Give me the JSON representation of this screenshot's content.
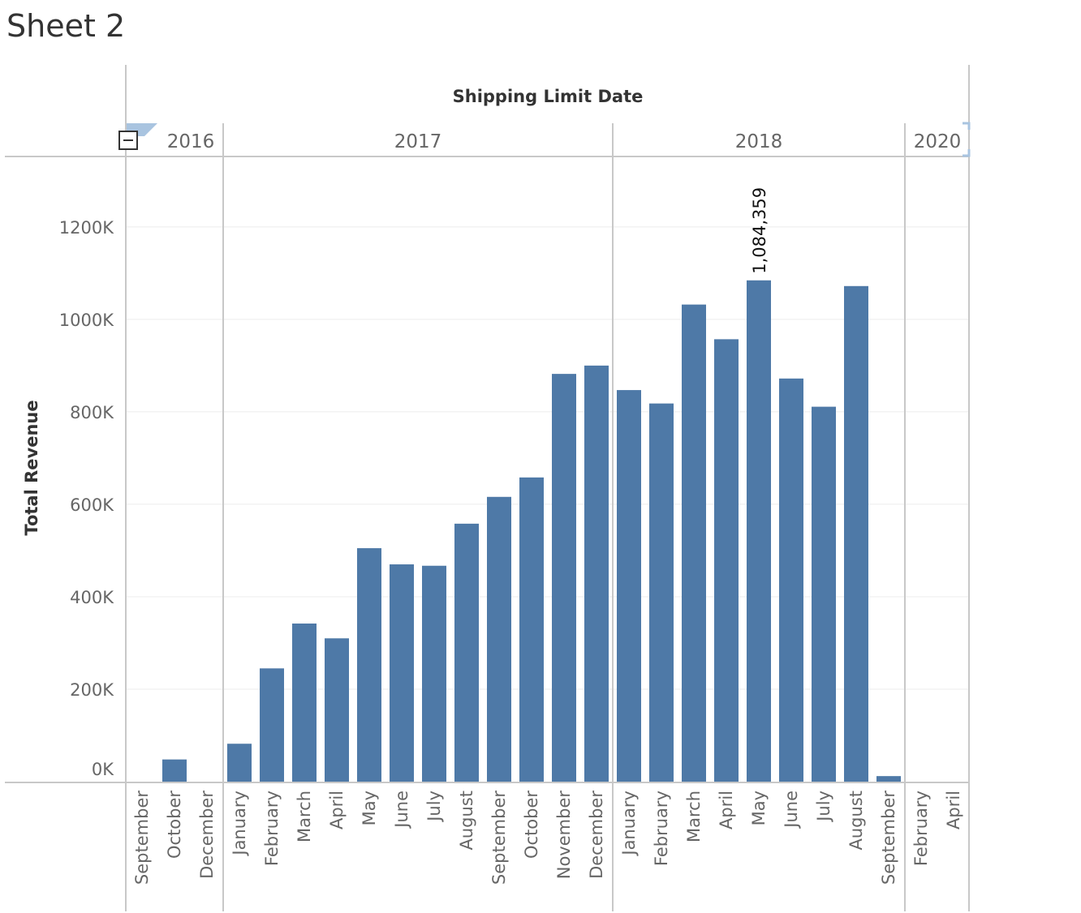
{
  "sheet": {
    "title": "Sheet 2"
  },
  "colors": {
    "bar": "#4e79a7",
    "grid": "#ececec",
    "divider": "#c8c8c8",
    "axis_text": "#666666",
    "title_text": "#333333"
  },
  "icons": {
    "collapse": "minus-box-icon"
  },
  "chart_data": {
    "type": "bar",
    "column_header": "Shipping Limit Date",
    "ylabel": "Total Revenue",
    "ylim": [
      0,
      1340000
    ],
    "yticks": [
      0,
      200000,
      400000,
      600000,
      800000,
      1000000,
      1200000
    ],
    "ytick_labels": [
      "0K",
      "200K",
      "400K",
      "600K",
      "800K",
      "1000K",
      "1200K"
    ],
    "grid": true,
    "years": [
      {
        "year": "2016",
        "months": [
          {
            "month": "September",
            "value": 0
          },
          {
            "month": "October",
            "value": 48000
          },
          {
            "month": "December",
            "value": 0
          }
        ]
      },
      {
        "year": "2017",
        "months": [
          {
            "month": "January",
            "value": 82000
          },
          {
            "month": "February",
            "value": 245000
          },
          {
            "month": "March",
            "value": 342000
          },
          {
            "month": "April",
            "value": 310000
          },
          {
            "month": "May",
            "value": 505000
          },
          {
            "month": "June",
            "value": 470000
          },
          {
            "month": "July",
            "value": 467000
          },
          {
            "month": "August",
            "value": 558000
          },
          {
            "month": "September",
            "value": 616000
          },
          {
            "month": "October",
            "value": 658000
          },
          {
            "month": "November",
            "value": 882000
          },
          {
            "month": "December",
            "value": 900000
          }
        ]
      },
      {
        "year": "2018",
        "months": [
          {
            "month": "January",
            "value": 847000
          },
          {
            "month": "February",
            "value": 818000
          },
          {
            "month": "March",
            "value": 1032000
          },
          {
            "month": "April",
            "value": 957000
          },
          {
            "month": "May",
            "value": 1084359,
            "label": "1,084,359"
          },
          {
            "month": "June",
            "value": 872000
          },
          {
            "month": "July",
            "value": 811000
          },
          {
            "month": "August",
            "value": 1072000
          },
          {
            "month": "September",
            "value": 12000
          }
        ]
      },
      {
        "year": "2020",
        "months": [
          {
            "month": "February",
            "value": 0
          },
          {
            "month": "April",
            "value": 0
          }
        ]
      }
    ]
  }
}
